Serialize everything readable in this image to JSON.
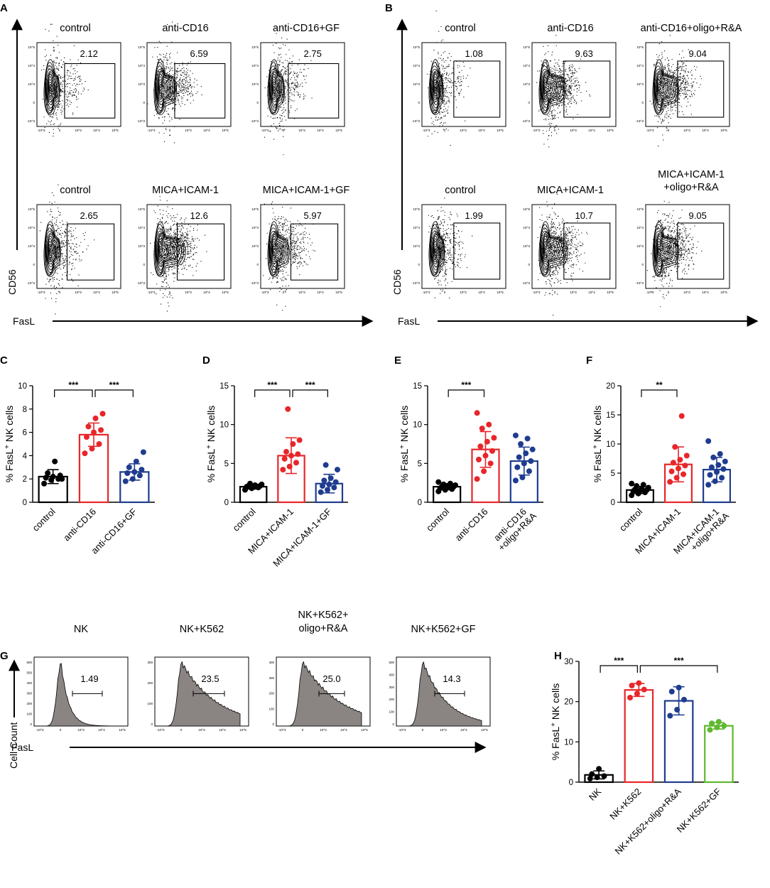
{
  "figure": {
    "panel_A": {
      "letter": "A",
      "y_axis_label": "CD56",
      "x_axis_label": "FasL",
      "tick_labels": [
        "-10^3",
        "0",
        "10^3",
        "10^4",
        "10^5"
      ],
      "rows": [
        [
          {
            "title": "control",
            "gate": "2.12"
          },
          {
            "title": "anti-CD16",
            "gate": "6.59"
          },
          {
            "title": "anti-CD16+GF",
            "gate": "2.75"
          }
        ],
        [
          {
            "title": "control",
            "gate": "2.65"
          },
          {
            "title": "MICA+ICAM-1",
            "gate": "12.6"
          },
          {
            "title": "MICA+ICAM-1+GF",
            "gate": "5.97"
          }
        ]
      ]
    },
    "panel_B": {
      "letter": "B",
      "y_axis_label": "CD56",
      "x_axis_label": "FasL",
      "rows": [
        [
          {
            "title": "control",
            "gate": "1.08"
          },
          {
            "title": "anti-CD16",
            "gate": "9.63"
          },
          {
            "title": "anti-CD16+oligo+R&A",
            "gate": "9.04"
          }
        ],
        [
          {
            "title": "control",
            "gate": "1.99"
          },
          {
            "title": "MICA+ICAM-1",
            "gate": "10.7"
          },
          {
            "title_lines": [
              "MICA+ICAM-1",
              "+oligo+R&A"
            ],
            "gate": "9.05"
          }
        ]
      ]
    },
    "panel_G": {
      "letter": "G",
      "y_axis_label": "Cell Count",
      "x_axis_label": "FasL",
      "histograms": [
        {
          "title_lines": [
            "NK"
          ],
          "gate": "1.49",
          "y_ticks": [
            "0",
            "100",
            "200",
            "300",
            "400",
            "500",
            "600"
          ]
        },
        {
          "title_lines": [
            "NK+K562"
          ],
          "gate": "23.5",
          "y_ticks": [
            "0",
            "100",
            "200",
            "300"
          ]
        },
        {
          "title_lines": [
            "NK+K562+",
            "oligo+R&A"
          ],
          "gate": "25.0",
          "y_ticks": [
            "0",
            "100",
            "200",
            "300",
            "400"
          ]
        },
        {
          "title_lines": [
            "NK+K562+GF"
          ],
          "gate": "14.3",
          "y_ticks": [
            "0",
            "100",
            "200",
            "300",
            "400",
            "500"
          ]
        }
      ]
    }
  },
  "chart_data": [
    {
      "panel": "C",
      "type": "bar",
      "ylabel": "% FasL+ NK cells",
      "ylim": [
        0,
        10
      ],
      "yticks": [
        0,
        2,
        4,
        6,
        8,
        10
      ],
      "categories": [
        [
          "control"
        ],
        [
          "anti-CD16"
        ],
        [
          "anti-CD16+GF"
        ]
      ],
      "colors": [
        "#000000",
        "#e8262a",
        "#1f3c8f"
      ],
      "means": [
        2.2,
        5.8,
        2.6
      ],
      "sd": [
        0.6,
        1.0,
        0.7
      ],
      "points": [
        [
          1.6,
          1.9,
          2.0,
          2.1,
          2.2,
          2.3,
          2.5,
          3.5,
          2.0
        ],
        [
          4.2,
          4.6,
          5.0,
          5.6,
          6.0,
          6.2,
          6.5,
          7.2,
          7.6
        ],
        [
          1.8,
          2.0,
          2.3,
          2.5,
          2.6,
          2.8,
          3.0,
          3.5,
          4.3
        ]
      ],
      "significance": [
        {
          "from": 0,
          "to": 1,
          "label": "***"
        },
        {
          "from": 1,
          "to": 2,
          "label": "***"
        }
      ]
    },
    {
      "panel": "D",
      "type": "bar",
      "ylabel": "% FasL+ NK cells",
      "ylim": [
        0,
        15
      ],
      "yticks": [
        0,
        5,
        10,
        15
      ],
      "categories": [
        [
          "control"
        ],
        [
          "MICA+ICAM-1"
        ],
        [
          "MICA+ICAM-1+GF"
        ]
      ],
      "colors": [
        "#000000",
        "#e8262a",
        "#1f3c8f"
      ],
      "means": [
        2.0,
        6.0,
        2.4
      ],
      "sd": [
        0.3,
        2.3,
        1.2
      ],
      "points": [
        [
          1.6,
          1.8,
          1.9,
          2.0,
          2.0,
          2.1,
          2.1,
          2.2,
          2.3,
          2.4
        ],
        [
          4.2,
          4.6,
          5.1,
          5.6,
          6.0,
          6.2,
          6.5,
          7.5,
          8.0,
          12.0
        ],
        [
          1.3,
          1.6,
          1.9,
          2.1,
          2.3,
          2.6,
          2.8,
          3.1,
          4.2,
          4.8
        ]
      ],
      "significance": [
        {
          "from": 0,
          "to": 1,
          "label": "***"
        },
        {
          "from": 1,
          "to": 2,
          "label": "***"
        }
      ]
    },
    {
      "panel": "E",
      "type": "bar",
      "ylabel": "% FasL+ NK cells",
      "ylim": [
        0,
        15
      ],
      "yticks": [
        0,
        5,
        10,
        15
      ],
      "categories": [
        [
          "control"
        ],
        [
          "anti-CD16"
        ],
        [
          "anti-CD16",
          "+oligo+R&A"
        ]
      ],
      "colors": [
        "#000000",
        "#e8262a",
        "#1f3c8f"
      ],
      "means": [
        2.0,
        6.8,
        5.3
      ],
      "sd": [
        0.4,
        2.3,
        1.8
      ],
      "points": [
        [
          1.4,
          1.6,
          1.7,
          1.8,
          1.9,
          2.0,
          2.0,
          2.1,
          2.2,
          2.3,
          2.4,
          2.6
        ],
        [
          3.0,
          4.0,
          5.0,
          5.5,
          6.0,
          6.6,
          7.2,
          7.8,
          8.3,
          9.5,
          10.0,
          11.5
        ],
        [
          2.8,
          3.2,
          4.0,
          4.5,
          5.0,
          5.3,
          5.8,
          6.3,
          6.8,
          7.5,
          8.2,
          8.6
        ]
      ],
      "significance": [
        {
          "from": 0,
          "to": 1,
          "label": "***"
        }
      ]
    },
    {
      "panel": "F",
      "type": "bar",
      "ylabel": "% FasL+ NK cells",
      "ylim": [
        0,
        20
      ],
      "yticks": [
        0,
        5,
        10,
        15,
        20
      ],
      "categories": [
        [
          "control"
        ],
        [
          "MICA+ICAM-1"
        ],
        [
          "MICA+ICAM-1",
          "+oligo+R&A"
        ]
      ],
      "colors": [
        "#000000",
        "#e8262a",
        "#1f3c8f"
      ],
      "means": [
        2.1,
        6.5,
        5.6
      ],
      "sd": [
        0.6,
        3.0,
        2.1
      ],
      "points": [
        [
          1.2,
          1.5,
          1.7,
          1.9,
          2.0,
          2.1,
          2.2,
          2.3,
          2.5,
          2.8,
          3.0,
          3.2
        ],
        [
          3.5,
          4.2,
          4.8,
          5.3,
          5.8,
          6.3,
          6.8,
          7.3,
          8.0,
          9.5,
          14.8
        ],
        [
          3.0,
          3.6,
          4.2,
          4.7,
          5.2,
          5.7,
          6.0,
          6.4,
          7.0,
          7.7,
          8.3,
          10.5
        ]
      ],
      "significance": [
        {
          "from": 0,
          "to": 1,
          "label": "**"
        }
      ]
    },
    {
      "panel": "H",
      "type": "bar",
      "ylabel": "% FasL+ NK cells",
      "ylim": [
        0,
        30
      ],
      "yticks": [
        0,
        10,
        20,
        30
      ],
      "categories": [
        [
          "NK"
        ],
        [
          "NK+K562"
        ],
        [
          "NK+K562+oligo+R&A"
        ],
        [
          "NK+K562+GF"
        ]
      ],
      "colors": [
        "#000000",
        "#e8262a",
        "#1f3c8f",
        "#5fb82e"
      ],
      "means": [
        1.8,
        22.9,
        20.2,
        14.0
      ],
      "sd": [
        1.0,
        1.6,
        3.5,
        0.8
      ],
      "points": [
        [
          0.9,
          1.2,
          1.5,
          2.0,
          3.3
        ],
        [
          21.0,
          22.0,
          23.0,
          24.0,
          24.6
        ],
        [
          16.5,
          18.0,
          20.5,
          22.5,
          23.5
        ],
        [
          13.0,
          13.6,
          14.0,
          14.6,
          15.0
        ]
      ],
      "significance": [
        {
          "from": 0,
          "to": 1,
          "label": "***"
        },
        {
          "from": 1,
          "to": 3,
          "label": "***"
        }
      ]
    }
  ]
}
